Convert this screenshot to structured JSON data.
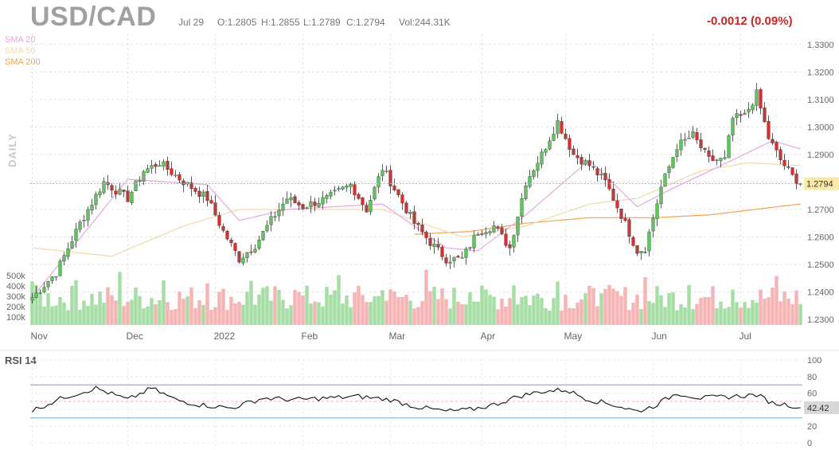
{
  "header": {
    "symbol": "USD/CAD",
    "date": "Jul 29",
    "open": "O:1.2805",
    "high": "H:1.2855",
    "low": "L:1.2789",
    "close": "C:1.2794",
    "volume": "Vol:244.31K",
    "change": "-0.0012 (0.09%)"
  },
  "legend": [
    {
      "label": "SMA 20",
      "color": "#e8a6e0"
    },
    {
      "label": "SMA 50",
      "color": "#f3d9a6"
    },
    {
      "label": "SMA 200",
      "color": "#f0a552"
    }
  ],
  "period_label": "DAILY",
  "price_tag": "1.2794",
  "rsi": {
    "title": "RSI 14",
    "tag": "42.42",
    "ticks": [
      "100",
      "80",
      "60",
      "40",
      "20",
      "0"
    ],
    "overbought": 70,
    "oversold": 30
  },
  "colors": {
    "up": "#5cc55c",
    "down": "#d23232",
    "vol_up": "#a6dea6",
    "vol_down": "#f5b5b5",
    "sma20": "#e8a6e0",
    "sma50": "#f3d9a6",
    "sma200": "#f0a552",
    "rsi_line": "#111111",
    "ob_line": "#b57ad6",
    "os_line": "#6cb4e8"
  },
  "chart_data": {
    "type": "candlestick",
    "title": "USD/CAD",
    "x_labels": [
      "Nov",
      "Dec",
      "2022",
      "Feb",
      "Mar",
      "Apr",
      "May",
      "Jun",
      "Jul"
    ],
    "y_ticks": [
      "1.3300",
      "1.3200",
      "1.3100",
      "1.3000",
      "1.2900",
      "1.2800",
      "1.2700",
      "1.2600",
      "1.2500",
      "1.2400",
      "1.2300"
    ],
    "ylim": [
      1.228,
      1.334
    ],
    "volume_ticks": [
      "500k",
      "400k",
      "300k",
      "200k",
      "100k"
    ],
    "grid": true,
    "close_anchors": [
      [
        0,
        1.238
      ],
      [
        6,
        1.247
      ],
      [
        12,
        1.265
      ],
      [
        18,
        1.28
      ],
      [
        24,
        1.274
      ],
      [
        28,
        1.284
      ],
      [
        32,
        1.287
      ],
      [
        38,
        1.28
      ],
      [
        44,
        1.274
      ],
      [
        48,
        1.262
      ],
      [
        52,
        1.252
      ],
      [
        56,
        1.257
      ],
      [
        60,
        1.266
      ],
      [
        64,
        1.274
      ],
      [
        68,
        1.271
      ],
      [
        74,
        1.274
      ],
      [
        80,
        1.279
      ],
      [
        84,
        1.27
      ],
      [
        88,
        1.285
      ],
      [
        92,
        1.275
      ],
      [
        96,
        1.265
      ],
      [
        100,
        1.258
      ],
      [
        104,
        1.252
      ],
      [
        108,
        1.252
      ],
      [
        112,
        1.262
      ],
      [
        116,
        1.264
      ],
      [
        120,
        1.256
      ],
      [
        124,
        1.28
      ],
      [
        128,
        1.29
      ],
      [
        132,
        1.302
      ],
      [
        136,
        1.29
      ],
      [
        140,
        1.286
      ],
      [
        144,
        1.28
      ],
      [
        148,
        1.268
      ],
      [
        152,
        1.255
      ],
      [
        154,
        1.256
      ],
      [
        158,
        1.278
      ],
      [
        162,
        1.293
      ],
      [
        166,
        1.297
      ],
      [
        170,
        1.288
      ],
      [
        174,
        1.288
      ],
      [
        176,
        1.303
      ],
      [
        179,
        1.304
      ],
      [
        182,
        1.312
      ],
      [
        185,
        1.296
      ],
      [
        188,
        1.288
      ],
      [
        191,
        1.282
      ],
      [
        193,
        1.2794
      ]
    ],
    "sma20_anchors": [
      [
        0,
        1.238
      ],
      [
        24,
        1.281
      ],
      [
        44,
        1.279
      ],
      [
        52,
        1.266
      ],
      [
        64,
        1.27
      ],
      [
        88,
        1.272
      ],
      [
        104,
        1.256
      ],
      [
        112,
        1.255
      ],
      [
        124,
        1.268
      ],
      [
        140,
        1.288
      ],
      [
        152,
        1.271
      ],
      [
        160,
        1.277
      ],
      [
        176,
        1.288
      ],
      [
        186,
        1.295
      ],
      [
        193,
        1.292
      ]
    ],
    "sma50_anchors": [
      [
        0,
        1.256
      ],
      [
        20,
        1.253
      ],
      [
        38,
        1.264
      ],
      [
        52,
        1.27
      ],
      [
        88,
        1.27
      ],
      [
        108,
        1.26
      ],
      [
        124,
        1.264
      ],
      [
        140,
        1.272
      ],
      [
        152,
        1.274
      ],
      [
        168,
        1.284
      ],
      [
        180,
        1.287
      ],
      [
        193,
        1.286
      ]
    ],
    "sma200_anchors": [
      [
        96,
        1.261
      ],
      [
        110,
        1.262
      ],
      [
        124,
        1.265
      ],
      [
        140,
        1.267
      ],
      [
        156,
        1.267
      ],
      [
        170,
        1.268
      ],
      [
        193,
        1.272
      ]
    ],
    "rsi_anchors": [
      [
        0,
        39
      ],
      [
        8,
        55
      ],
      [
        16,
        66
      ],
      [
        24,
        52
      ],
      [
        30,
        66
      ],
      [
        36,
        52
      ],
      [
        42,
        46
      ],
      [
        50,
        42
      ],
      [
        58,
        54
      ],
      [
        66,
        52
      ],
      [
        74,
        54
      ],
      [
        82,
        56
      ],
      [
        90,
        52
      ],
      [
        96,
        44
      ],
      [
        104,
        38
      ],
      [
        110,
        40
      ],
      [
        116,
        46
      ],
      [
        122,
        56
      ],
      [
        128,
        62
      ],
      [
        134,
        64
      ],
      [
        140,
        52
      ],
      [
        146,
        46
      ],
      [
        152,
        38
      ],
      [
        156,
        44
      ],
      [
        162,
        60
      ],
      [
        168,
        54
      ],
      [
        176,
        56
      ],
      [
        182,
        58
      ],
      [
        186,
        48
      ],
      [
        190,
        46
      ],
      [
        193,
        42.42
      ]
    ]
  }
}
